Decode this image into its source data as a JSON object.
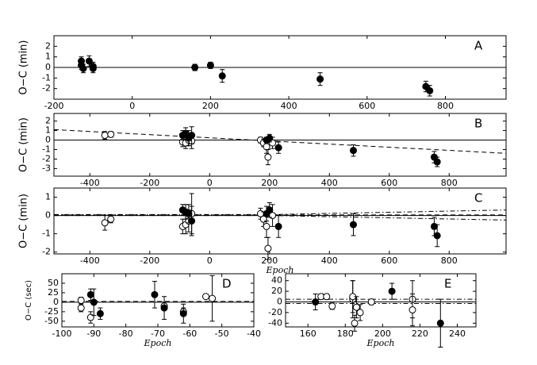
{
  "chart_data": [
    {
      "type": "scatter",
      "label": "A",
      "ylabel": "O−C (min)",
      "xlim": [
        -200,
        955
      ],
      "ylim": [
        -3,
        3
      ],
      "xticks": [
        -200,
        0,
        200,
        400,
        600,
        800
      ],
      "yticks": [
        -2,
        -1,
        0,
        1,
        2
      ],
      "lines": [
        {
          "style": "solid",
          "x": [
            -200,
            955
          ],
          "values": [
            0,
            0
          ]
        }
      ],
      "series": [
        {
          "marker": "filled",
          "x": [
            -130,
            -130,
            -125,
            -110,
            -100,
            -100,
            160,
            200,
            230,
            480,
            750,
            760
          ],
          "values": [
            0.6,
            0.2,
            -0.1,
            0.6,
            0.1,
            -0.1,
            0,
            0.2,
            -0.8,
            -1.1,
            -1.8,
            -2.2
          ],
          "errors": [
            0.4,
            0.4,
            0.4,
            0.5,
            0.4,
            0.4,
            0.3,
            0.3,
            0.6,
            0.6,
            0.5,
            0.5
          ]
        }
      ]
    },
    {
      "type": "scatter",
      "label": "B",
      "ylabel": "O−C (min)",
      "xlim": [
        -520,
        990
      ],
      "ylim": [
        -3.8,
        2.8
      ],
      "xticks": [
        -400,
        -200,
        0,
        200,
        400,
        600,
        800
      ],
      "yticks": [
        -3,
        -2,
        -1,
        0,
        1,
        2
      ],
      "lines": [
        {
          "style": "solid",
          "x": [
            -520,
            990
          ],
          "values": [
            0,
            0
          ]
        },
        {
          "style": "dashed",
          "x": [
            -520,
            990
          ],
          "values": [
            1.1,
            -1.4
          ]
        }
      ],
      "series": [
        {
          "marker": "open",
          "x": [
            -350,
            -330,
            -90,
            -80,
            -70,
            -60,
            170,
            180,
            190,
            195,
            210
          ],
          "values": [
            0.5,
            0.6,
            -0.2,
            -0.3,
            0,
            -0.1,
            0,
            -0.3,
            -0.7,
            -1.8,
            -0.3
          ],
          "errors": [
            0.4,
            0.3,
            0.5,
            0.6,
            0.6,
            0.8,
            0.3,
            0.4,
            0.7,
            0.8,
            0.6
          ]
        },
        {
          "marker": "filled",
          "x": [
            -90,
            -80,
            -70,
            -60,
            190,
            200,
            230,
            480,
            750,
            760
          ],
          "values": [
            0.5,
            0.7,
            0.2,
            0.5,
            0,
            0.2,
            -0.8,
            -1.1,
            -1.8,
            -2.3
          ],
          "errors": [
            0.5,
            0.6,
            0.8,
            0.9,
            0.3,
            0.4,
            0.6,
            0.6,
            0.6,
            0.5
          ]
        }
      ]
    },
    {
      "type": "scatter",
      "label": "C",
      "ylabel": "O−C (min)",
      "xlabel": "Epoch",
      "xlim": [
        -520,
        990
      ],
      "ylim": [
        -2.1,
        1.5
      ],
      "xticks": [
        -400,
        -200,
        0,
        200,
        400,
        600,
        800
      ],
      "yticks": [
        -2,
        -1,
        0,
        1
      ],
      "lines": [
        {
          "style": "solid",
          "x": [
            -520,
            990
          ],
          "values": [
            0,
            0
          ]
        },
        {
          "style": "dashed",
          "x": [
            -520,
            990
          ],
          "values": [
            0.03,
            0.03
          ]
        },
        {
          "style": "dashdot",
          "x": [
            -520,
            200,
            990
          ],
          "values": [
            0.05,
            0.05,
            0.3
          ]
        },
        {
          "style": "dashdot",
          "x": [
            -520,
            200,
            990
          ],
          "values": [
            0,
            0,
            -0.25
          ]
        }
      ],
      "series": [
        {
          "marker": "open",
          "x": [
            -350,
            -330,
            -90,
            -80,
            -70,
            -60,
            170,
            180,
            190,
            195,
            210
          ],
          "values": [
            -0.4,
            -0.2,
            -0.6,
            -0.5,
            -0.3,
            0.1,
            0.1,
            -0.2,
            -0.6,
            -1.8,
            0
          ],
          "errors": [
            0.4,
            0.2,
            0.4,
            0.5,
            0.6,
            1.1,
            0.3,
            0.4,
            0.6,
            0.6,
            0.6
          ]
        },
        {
          "marker": "filled",
          "x": [
            -90,
            -80,
            -70,
            -60,
            190,
            200,
            230,
            480,
            750,
            760
          ],
          "values": [
            0.3,
            0.2,
            0.1,
            -0.3,
            0.1,
            0.3,
            -0.6,
            -0.5,
            -0.6,
            -1.1
          ],
          "errors": [
            0.3,
            0.4,
            0.5,
            0.8,
            0.4,
            0.4,
            0.6,
            0.6,
            0.5,
            0.6
          ]
        }
      ]
    },
    {
      "type": "scatter",
      "label": "D",
      "ylabel": "O−C (sec)",
      "xlabel": "Epoch",
      "xlim": [
        -100,
        -40
      ],
      "ylim": [
        -65,
        75
      ],
      "xticks": [
        -100,
        -90,
        -80,
        -70,
        -60,
        -50,
        -40
      ],
      "yticks": [
        -50,
        -25,
        0,
        25,
        50
      ],
      "lines": [
        {
          "style": "solid",
          "x": [
            -100,
            -40
          ],
          "values": [
            0,
            0
          ]
        },
        {
          "style": "dashed",
          "x": [
            -100,
            -40
          ],
          "values": [
            2,
            2
          ]
        }
      ],
      "series": [
        {
          "marker": "open",
          "x": [
            -94,
            -94,
            -91,
            -68,
            -62,
            -55,
            -53
          ],
          "values": [
            5,
            -15,
            -40,
            -10,
            -25,
            15,
            10
          ],
          "errors": [
            8,
            10,
            15,
            10,
            10,
            5,
            60
          ]
        },
        {
          "marker": "filled",
          "x": [
            -91,
            -90,
            -88,
            -71,
            -68,
            -62
          ],
          "values": [
            20,
            0,
            -30,
            20,
            -15,
            -30
          ],
          "errors": [
            15,
            35,
            15,
            35,
            30,
            25
          ]
        }
      ]
    },
    {
      "type": "scatter",
      "label": "E",
      "xlabel": "Epoch",
      "xlim": [
        148,
        250
      ],
      "ylim": [
        -47,
        53
      ],
      "xticks": [
        160,
        180,
        200,
        220,
        240
      ],
      "yticks": [
        -40,
        -20,
        0,
        20,
        40
      ],
      "lines": [
        {
          "style": "solid",
          "x": [
            148,
            250
          ],
          "values": [
            0,
            0
          ]
        },
        {
          "style": "dashdot",
          "x": [
            148,
            250
          ],
          "values": [
            5,
            5
          ]
        },
        {
          "style": "dashdot",
          "x": [
            148,
            250
          ],
          "values": [
            -3,
            -3
          ]
        }
      ],
      "series": [
        {
          "marker": "open",
          "x": [
            167,
            170,
            173,
            184,
            184,
            185,
            186,
            188,
            194,
            216,
            216
          ],
          "values": [
            10,
            10,
            -8,
            5,
            10,
            -40,
            -10,
            -20,
            0,
            5,
            -15
          ],
          "errors": [
            5,
            5,
            6,
            35,
            30,
            15,
            20,
            15,
            5,
            35,
            30
          ]
        },
        {
          "marker": "filled",
          "x": [
            164,
            205,
            231
          ],
          "values": [
            0,
            20,
            -40
          ],
          "errors": [
            15,
            15,
            45
          ]
        }
      ]
    }
  ]
}
